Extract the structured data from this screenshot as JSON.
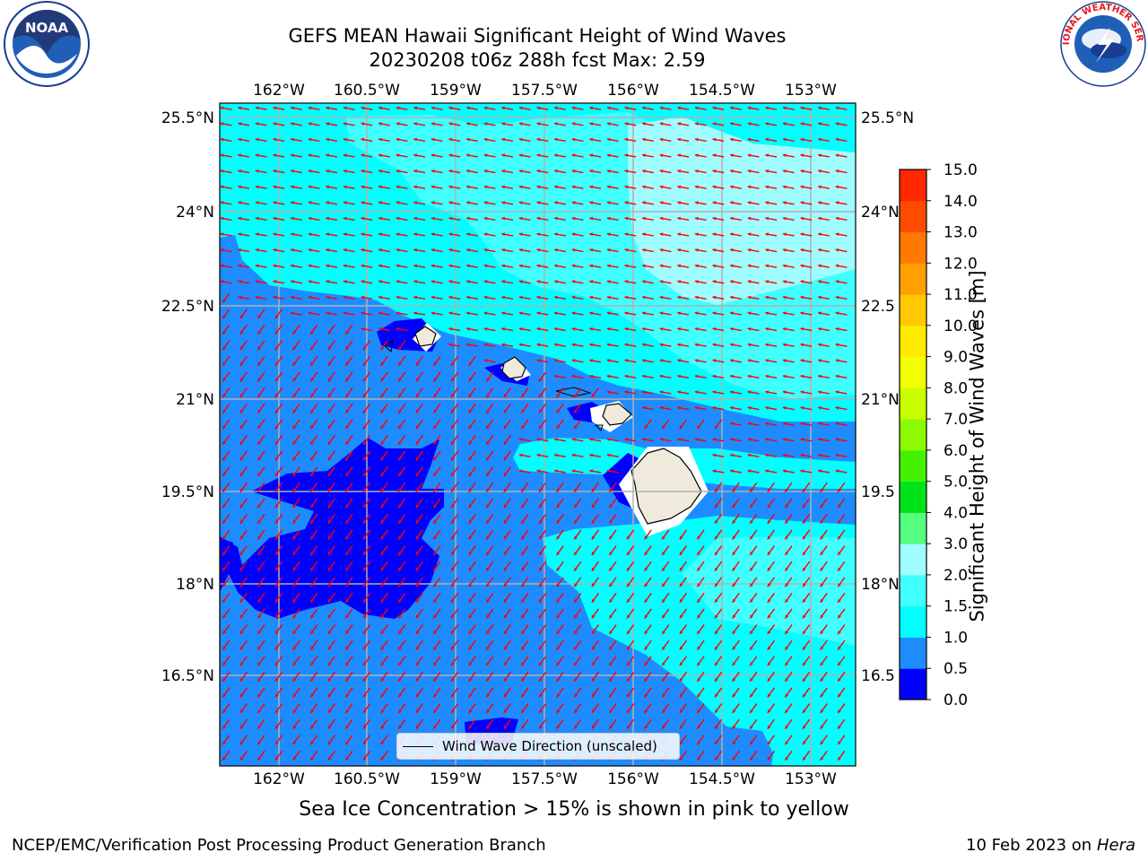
{
  "header": {
    "title_line1": "GEFS MEAN Hawaii Significant Height of Wind Waves",
    "title_line2": "20230208 t06z 288h fcst   Max: 2.59"
  },
  "logos": {
    "left": {
      "icon": "noaa-logo",
      "text": "NOAA"
    },
    "right": {
      "icon": "nws-logo",
      "text": "NATIONAL WEATHER SERVICE"
    }
  },
  "map": {
    "lon_labels": [
      "162°W",
      "160.5°W",
      "159°W",
      "157.5°W",
      "156°W",
      "154.5°W",
      "153°W"
    ],
    "lat_labels": [
      "25.5°N",
      "24°N",
      "22.5°N",
      "21°N",
      "19.5°N",
      "18°N",
      "16.5°N"
    ],
    "lat_labels_right": [
      "25.5°N",
      "24°N",
      "22.5",
      "21°N",
      "19.5",
      "18°N",
      "16.5"
    ],
    "arrow_color": "#ff0000",
    "legend_label": "Wind Wave Direction (unscaled)"
  },
  "colorbar": {
    "label": "Significant Height of Wind Waves [m]",
    "ticks": [
      "15.0",
      "14.0",
      "13.0",
      "12.0",
      "11.0",
      "10.0",
      "9.0",
      "8.0",
      "7.0",
      "6.0",
      "5.0",
      "4.0",
      "3.0",
      "2.0",
      "1.5",
      "1.0",
      "0.5",
      "0.0"
    ],
    "colors": [
      "#0000ff",
      "#1e8cff",
      "#00ffff",
      "#40ffff",
      "#9ffdff",
      "#55ff80",
      "#00e31a",
      "#44f200",
      "#8cfa00",
      "#c8fe00",
      "#f2ff00",
      "#ffeb00",
      "#ffc800",
      "#ffa000",
      "#ff7800",
      "#ff4b00",
      "#ff2800",
      "#ff0000"
    ]
  },
  "note": "Sea Ice Concentration > 15% is shown in pink to yellow",
  "footer": {
    "left": "NCEP/EMC/Verification Post Processing Product Generation Branch",
    "right_prefix": "10 Feb 2023 on",
    "right_host": "Hera"
  }
}
